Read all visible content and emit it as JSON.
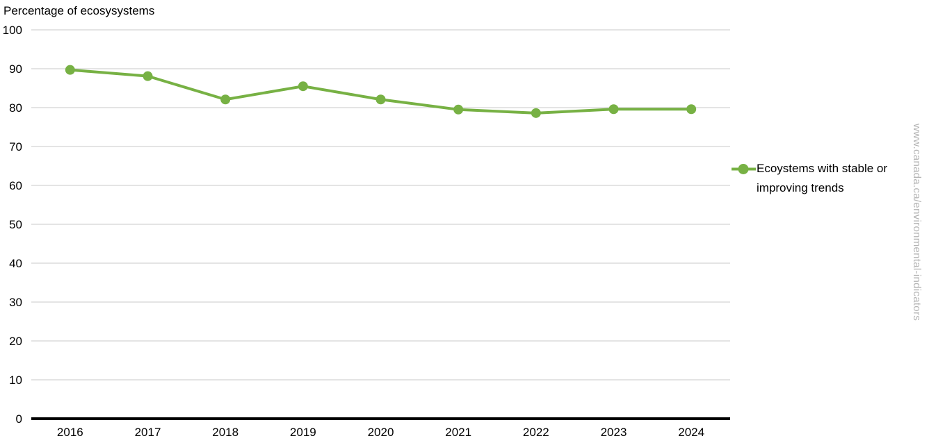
{
  "title": "Percentage of ecosysystems",
  "watermark": {
    "text": "www.canada.ca/environmental-indicators",
    "color": "#b3b3b3"
  },
  "legend": {
    "line1": "Ecoystems with stable or",
    "line2": "improving trends"
  },
  "chart_data": {
    "type": "line",
    "title": "Percentage of ecosysystems",
    "categories": [
      "2016",
      "2017",
      "2018",
      "2019",
      "2020",
      "2021",
      "2022",
      "2023",
      "2024"
    ],
    "series": [
      {
        "name": "Ecoystems with stable or improving trends",
        "values": [
          89.7,
          88.1,
          82.1,
          85.5,
          82.1,
          79.5,
          78.6,
          79.6,
          79.6
        ],
        "color": "#77b144"
      }
    ],
    "xlabel": "",
    "ylabel": "Percentage of ecosysystems",
    "ylim": [
      0,
      100
    ],
    "ytick_interval": 10,
    "grid": true,
    "legend_position": "right",
    "colors": {
      "gridline": "#c9c9c9",
      "axis_line": "#000000",
      "tick_label": "#000000"
    }
  }
}
